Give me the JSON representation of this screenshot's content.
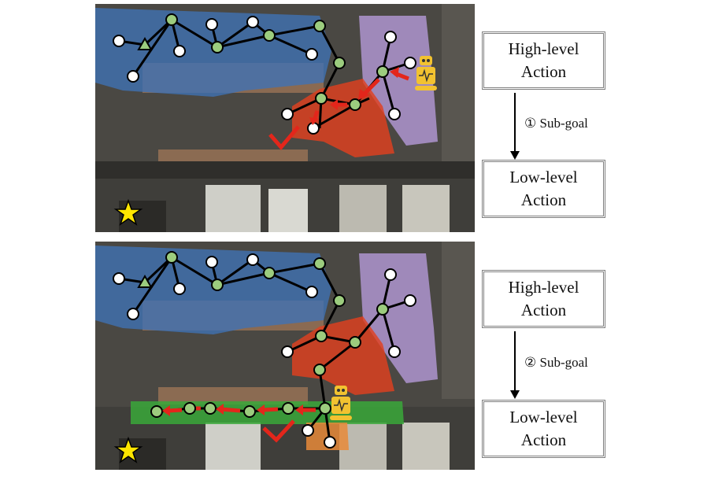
{
  "panels": [
    {
      "high_level_label": [
        "High-level",
        "Action"
      ],
      "low_level_label": [
        "Low-level",
        "Action"
      ],
      "subgoal_label": "① Sub-goal"
    },
    {
      "high_level_label": [
        "High-level",
        "Action"
      ],
      "low_level_label": [
        "Low-level",
        "Action"
      ],
      "subgoal_label": "② Sub-goal"
    }
  ],
  "icons": [
    "robot-icon",
    "star-icon",
    "checkmark-icon",
    "triangle-start-icon"
  ],
  "colors": {
    "region_blue": "#3f72b6",
    "region_purple": "#b49ad8",
    "region_red": "#e0401e",
    "region_green": "#3aa83a",
    "region_orange": "#e88a3a",
    "node_visited": "#9ccc7e",
    "node_unvisited": "#ffffff",
    "path_arrow": "#e3261b",
    "robot": "#f2c230",
    "star": "#ffe600"
  }
}
